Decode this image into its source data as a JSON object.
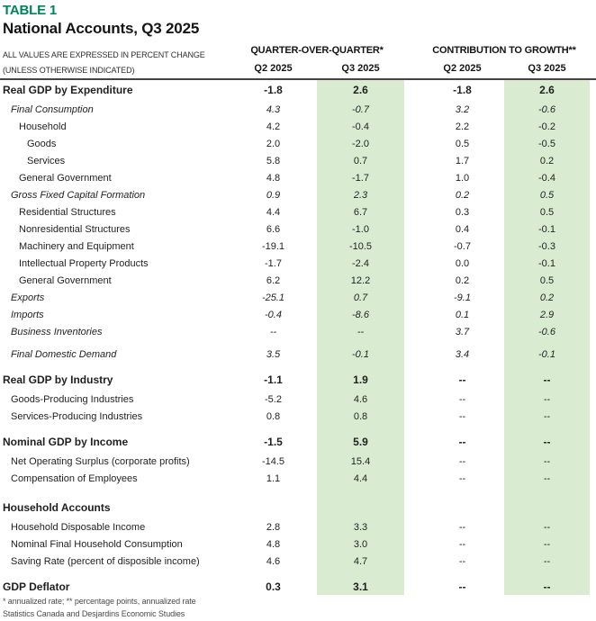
{
  "colors": {
    "accent_green": "#008558",
    "highlight_green": "#d9ecd2"
  },
  "header": {
    "table_label": "TABLE 1",
    "title": "National Accounts, Q3 2025",
    "note_line1": "ALL VALUES ARE EXPRESSED IN PERCENT CHANGE",
    "note_line2": "(UNLESS OTHERWISE INDICATED)",
    "group1": "QUARTER-OVER-QUARTER*",
    "group2": "CONTRIBUTION TO GROWTH**",
    "columns": [
      "Q2 2025",
      "Q3 2025",
      "Q2 2025",
      "Q3 2025"
    ]
  },
  "table": {
    "rows": [
      {
        "label": "Real GDP by Expenditure",
        "style": "bold",
        "indent": 0,
        "gap": "",
        "values": [
          "-1.8",
          "2.6",
          "-1.8",
          "2.6"
        ]
      },
      {
        "label": "Final Consumption",
        "style": "italic",
        "indent": 1,
        "gap": "xs",
        "values": [
          "4.3",
          "-0.7",
          "3.2",
          "-0.6"
        ]
      },
      {
        "label": "Household",
        "style": "normal",
        "indent": 2,
        "gap": "",
        "values": [
          "4.2",
          "-0.4",
          "2.2",
          "-0.2"
        ]
      },
      {
        "label": "Goods",
        "style": "normal",
        "indent": 3,
        "gap": "",
        "values": [
          "2.0",
          "-2.0",
          "0.5",
          "-0.5"
        ]
      },
      {
        "label": "Services",
        "style": "normal",
        "indent": 3,
        "gap": "",
        "values": [
          "5.8",
          "0.7",
          "1.7",
          "0.2"
        ]
      },
      {
        "label": "General Government",
        "style": "normal",
        "indent": 2,
        "gap": "",
        "values": [
          "4.8",
          "-1.7",
          "1.0",
          "-0.4"
        ]
      },
      {
        "label": "Gross Fixed Capital Formation",
        "style": "italic",
        "indent": 1,
        "gap": "",
        "values": [
          "0.9",
          "2.3",
          "0.2",
          "0.5"
        ]
      },
      {
        "label": "Residential Structures",
        "style": "normal",
        "indent": 2,
        "gap": "",
        "values": [
          "4.4",
          "6.7",
          "0.3",
          "0.5"
        ]
      },
      {
        "label": "Nonresidential Structures",
        "style": "normal",
        "indent": 2,
        "gap": "",
        "values": [
          "6.6",
          "-1.0",
          "0.4",
          "-0.1"
        ]
      },
      {
        "label": "Machinery and Equipment",
        "style": "normal",
        "indent": 2,
        "gap": "",
        "values": [
          "-19.1",
          "-10.5",
          "-0.7",
          "-0.3"
        ]
      },
      {
        "label": "Intellectual Property Products",
        "style": "normal",
        "indent": 2,
        "gap": "",
        "values": [
          "-1.7",
          "-2.4",
          "0.0",
          "-0.1"
        ]
      },
      {
        "label": "General Government",
        "style": "normal",
        "indent": 2,
        "gap": "",
        "values": [
          "6.2",
          "12.2",
          "0.2",
          "0.5"
        ]
      },
      {
        "label": "Exports",
        "style": "italic",
        "indent": 1,
        "gap": "",
        "values": [
          "-25.1",
          "0.7",
          "-9.1",
          "0.2"
        ]
      },
      {
        "label": "Imports",
        "style": "italic",
        "indent": 1,
        "gap": "",
        "values": [
          "-0.4",
          "-8.6",
          "0.1",
          "2.9"
        ]
      },
      {
        "label": "Business Inventories",
        "style": "italic",
        "indent": 1,
        "gap": "",
        "values": [
          "--",
          "--",
          "3.7",
          "-0.6"
        ]
      },
      {
        "label": "Final Domestic Demand",
        "style": "italic",
        "indent": 1,
        "gap": "sm",
        "values": [
          "3.5",
          "-0.1",
          "3.4",
          "-0.1"
        ]
      },
      {
        "label": "Real GDP by Industry",
        "style": "bold",
        "indent": 0,
        "gap": "md",
        "values": [
          "-1.1",
          "1.9",
          "--",
          "--"
        ]
      },
      {
        "label": "Goods-Producing Industries",
        "style": "normal",
        "indent": 1,
        "gap": "xs",
        "values": [
          "-5.2",
          "4.6",
          "--",
          "--"
        ]
      },
      {
        "label": "Services-Producing Industries",
        "style": "normal",
        "indent": 1,
        "gap": "",
        "values": [
          "0.8",
          "0.8",
          "--",
          "--"
        ]
      },
      {
        "label": "Nominal GDP by Income",
        "style": "bold",
        "indent": 0,
        "gap": "md",
        "values": [
          "-1.5",
          "5.9",
          "--",
          "--"
        ]
      },
      {
        "label": "Net Operating Surplus (corporate profits)",
        "style": "normal",
        "indent": 1,
        "gap": "xs",
        "values": [
          "-14.5",
          "15.4",
          "--",
          "--"
        ]
      },
      {
        "label": "Compensation of Employees",
        "style": "normal",
        "indent": 1,
        "gap": "",
        "values": [
          "1.1",
          "4.4",
          "--",
          "--"
        ]
      },
      {
        "label": "Household Accounts",
        "style": "bold",
        "indent": 0,
        "gap": "lg",
        "values": [
          "",
          "",
          "",
          ""
        ]
      },
      {
        "label": "Household Disposable Income",
        "style": "normal",
        "indent": 1,
        "gap": "xs",
        "values": [
          "2.8",
          "3.3",
          "--",
          "--"
        ]
      },
      {
        "label": "Nominal Final Household Consumption",
        "style": "normal",
        "indent": 1,
        "gap": "",
        "values": [
          "4.8",
          "3.0",
          "--",
          "--"
        ]
      },
      {
        "label": "Saving Rate (percent of disposible income)",
        "style": "normal",
        "indent": 1,
        "gap": "",
        "values": [
          "4.6",
          "4.7",
          "--",
          "--"
        ]
      },
      {
        "label": "GDP Deflator",
        "style": "bold",
        "indent": 0,
        "gap": "md",
        "values": [
          "0.3",
          "3.1",
          "--",
          "--"
        ]
      }
    ]
  },
  "footer": {
    "note1": "* annualized rate; ** percentage points, annualized rate",
    "note2": "Statistics Canada and Desjardins Economic Studies"
  }
}
